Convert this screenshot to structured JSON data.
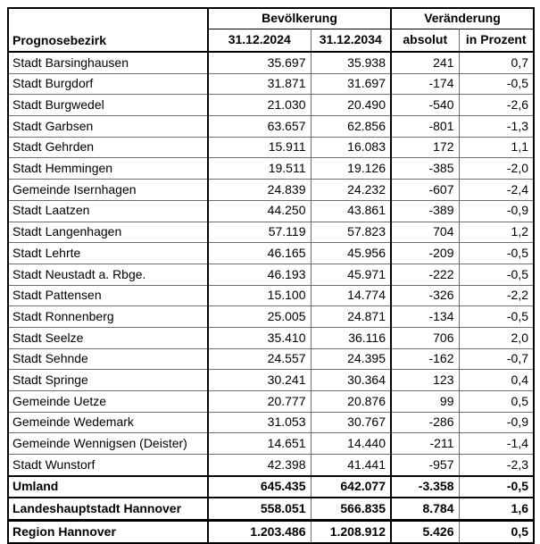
{
  "table": {
    "corner_header": "Prognosebezirk",
    "group_headers": [
      "Bevölkerung",
      "Veränderung"
    ],
    "sub_headers": [
      "31.12.2024",
      "31.12.2034",
      "absolut",
      "in Prozent"
    ],
    "rows": [
      {
        "name": "Stadt Barsinghausen",
        "pop_2024": "35.697",
        "pop_2034": "35.938",
        "change_abs": "241",
        "change_pct": "0,7",
        "style": "normal"
      },
      {
        "name": "Stadt Burgdorf",
        "pop_2024": "31.871",
        "pop_2034": "31.697",
        "change_abs": "-174",
        "change_pct": "-0,5",
        "style": "normal"
      },
      {
        "name": "Stadt Burgwedel",
        "pop_2024": "21.030",
        "pop_2034": "20.490",
        "change_abs": "-540",
        "change_pct": "-2,6",
        "style": "normal"
      },
      {
        "name": "Stadt Garbsen",
        "pop_2024": "63.657",
        "pop_2034": "62.856",
        "change_abs": "-801",
        "change_pct": "-1,3",
        "style": "normal"
      },
      {
        "name": "Stadt Gehrden",
        "pop_2024": "15.911",
        "pop_2034": "16.083",
        "change_abs": "172",
        "change_pct": "1,1",
        "style": "normal"
      },
      {
        "name": "Stadt Hemmingen",
        "pop_2024": "19.511",
        "pop_2034": "19.126",
        "change_abs": "-385",
        "change_pct": "-2,0",
        "style": "normal"
      },
      {
        "name": "Gemeinde Isernhagen",
        "pop_2024": "24.839",
        "pop_2034": "24.232",
        "change_abs": "-607",
        "change_pct": "-2,4",
        "style": "normal"
      },
      {
        "name": "Stadt Laatzen",
        "pop_2024": "44.250",
        "pop_2034": "43.861",
        "change_abs": "-389",
        "change_pct": "-0,9",
        "style": "normal"
      },
      {
        "name": "Stadt Langenhagen",
        "pop_2024": "57.119",
        "pop_2034": "57.823",
        "change_abs": "704",
        "change_pct": "1,2",
        "style": "normal"
      },
      {
        "name": "Stadt Lehrte",
        "pop_2024": "46.165",
        "pop_2034": "45.956",
        "change_abs": "-209",
        "change_pct": "-0,5",
        "style": "normal"
      },
      {
        "name": "Stadt Neustadt a. Rbge.",
        "pop_2024": "46.193",
        "pop_2034": "45.971",
        "change_abs": "-222",
        "change_pct": "-0,5",
        "style": "normal"
      },
      {
        "name": "Stadt Pattensen",
        "pop_2024": "15.100",
        "pop_2034": "14.774",
        "change_abs": "-326",
        "change_pct": "-2,2",
        "style": "normal"
      },
      {
        "name": "Stadt Ronnenberg",
        "pop_2024": "25.005",
        "pop_2034": "24.871",
        "change_abs": "-134",
        "change_pct": "-0,5",
        "style": "normal"
      },
      {
        "name": "Stadt Seelze",
        "pop_2024": "35.410",
        "pop_2034": "36.116",
        "change_abs": "706",
        "change_pct": "2,0",
        "style": "normal"
      },
      {
        "name": "Stadt Sehnde",
        "pop_2024": "24.557",
        "pop_2034": "24.395",
        "change_abs": "-162",
        "change_pct": "-0,7",
        "style": "normal"
      },
      {
        "name": "Stadt Springe",
        "pop_2024": "30.241",
        "pop_2034": "30.364",
        "change_abs": "123",
        "change_pct": "0,4",
        "style": "normal"
      },
      {
        "name": "Gemeinde Uetze",
        "pop_2024": "20.777",
        "pop_2034": "20.876",
        "change_abs": "99",
        "change_pct": "0,5",
        "style": "normal"
      },
      {
        "name": "Gemeinde Wedemark",
        "pop_2024": "31.053",
        "pop_2034": "30.767",
        "change_abs": "-286",
        "change_pct": "-0,9",
        "style": "normal"
      },
      {
        "name": "Gemeinde Wennigsen (Deister)",
        "pop_2024": "14.651",
        "pop_2034": "14.440",
        "change_abs": "-211",
        "change_pct": "-1,4",
        "style": "normal"
      },
      {
        "name": "Stadt Wunstorf",
        "pop_2024": "42.398",
        "pop_2034": "41.441",
        "change_abs": "-957",
        "change_pct": "-2,3",
        "style": "normal"
      },
      {
        "name": "Umland",
        "pop_2024": "645.435",
        "pop_2034": "642.077",
        "change_abs": "-3.358",
        "change_pct": "-0,5",
        "style": "subtotal"
      },
      {
        "name": "Landeshauptstadt Hannover",
        "pop_2024": "558.051",
        "pop_2034": "566.835",
        "change_abs": "8.784",
        "change_pct": "1,6",
        "style": "subtotal"
      },
      {
        "name": "Region Hannover",
        "pop_2024": "1.203.486",
        "pop_2034": "1.208.912",
        "change_abs": "5.426",
        "change_pct": "0,5",
        "style": "total"
      }
    ]
  },
  "colors": {
    "background": "#ffffff",
    "text": "#000000",
    "border_strong": "#000000",
    "border_light": "#6e6e6e"
  }
}
